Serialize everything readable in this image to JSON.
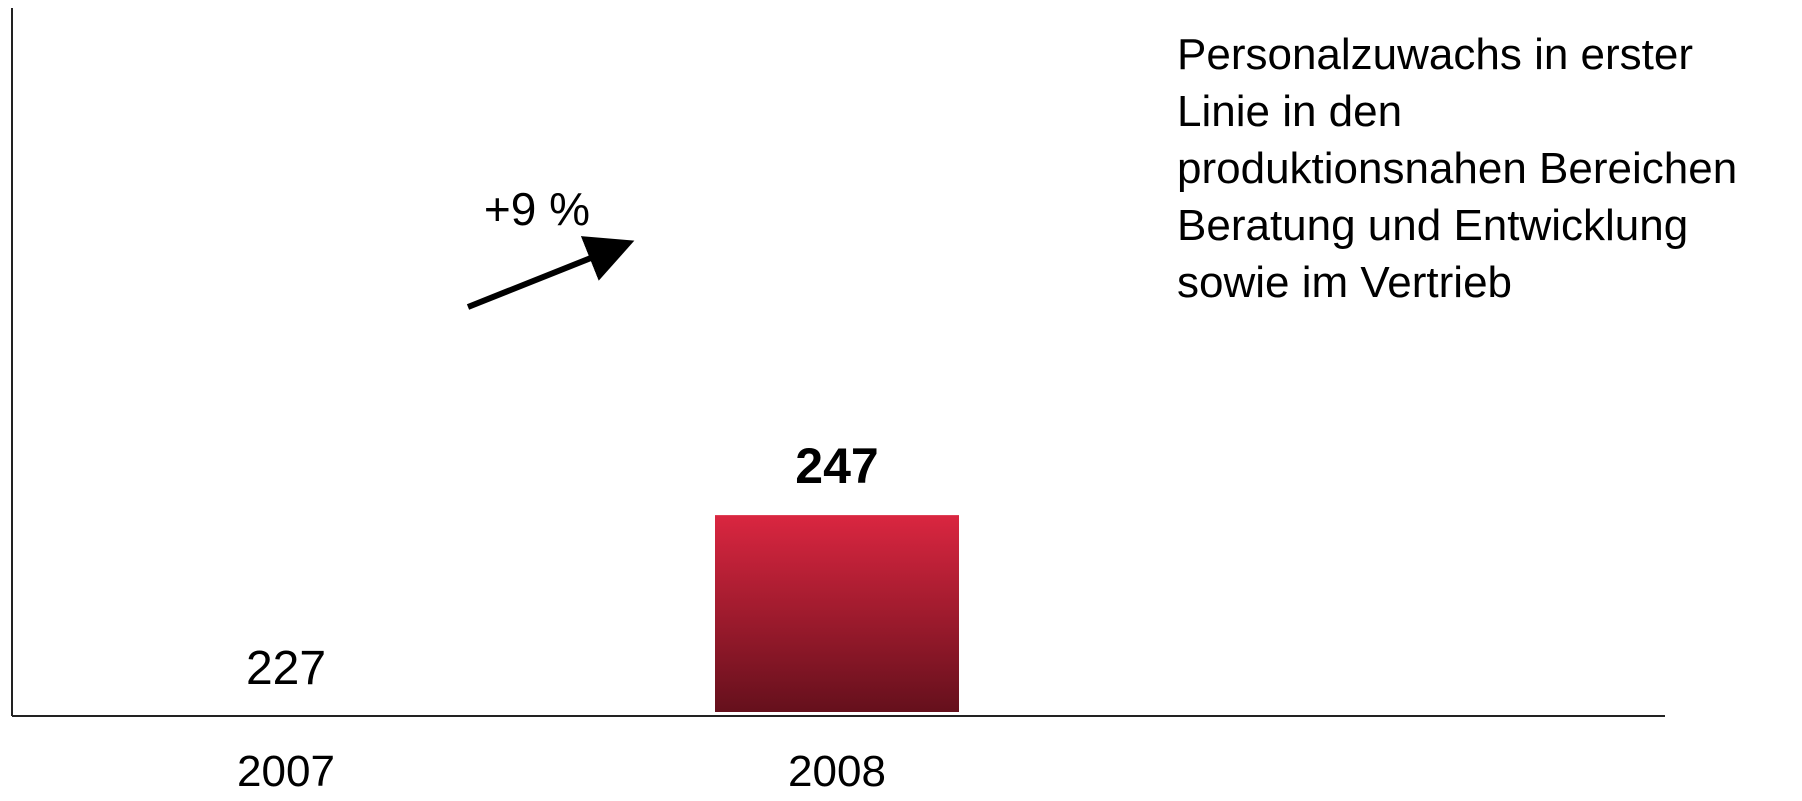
{
  "chart_data": {
    "type": "bar",
    "categories": [
      "2007",
      "2008"
    ],
    "values": [
      227,
      247
    ],
    "value_labels": [
      "227",
      "247"
    ],
    "title": "",
    "xlabel": "",
    "ylabel": "",
    "annotations": [
      {
        "text": "+9 %",
        "type": "growth-arrow",
        "from": "2007",
        "to": "2008"
      }
    ],
    "grid": false,
    "legend": "none",
    "colors": {
      "bar_2007_top": "#ae9f9f",
      "bar_2007_bottom": "#4d4848",
      "bar_2008_top": "#da2640",
      "bar_2008_bottom": "#65101c",
      "axis": "#222222",
      "text": "#000000"
    }
  },
  "note": {
    "lines": [
      "Personalzuwachs in erster",
      "Linie in den",
      "produktionsnahen Bereichen",
      "Beratung und Entwicklung",
      "sowie im Vertrieb"
    ]
  }
}
